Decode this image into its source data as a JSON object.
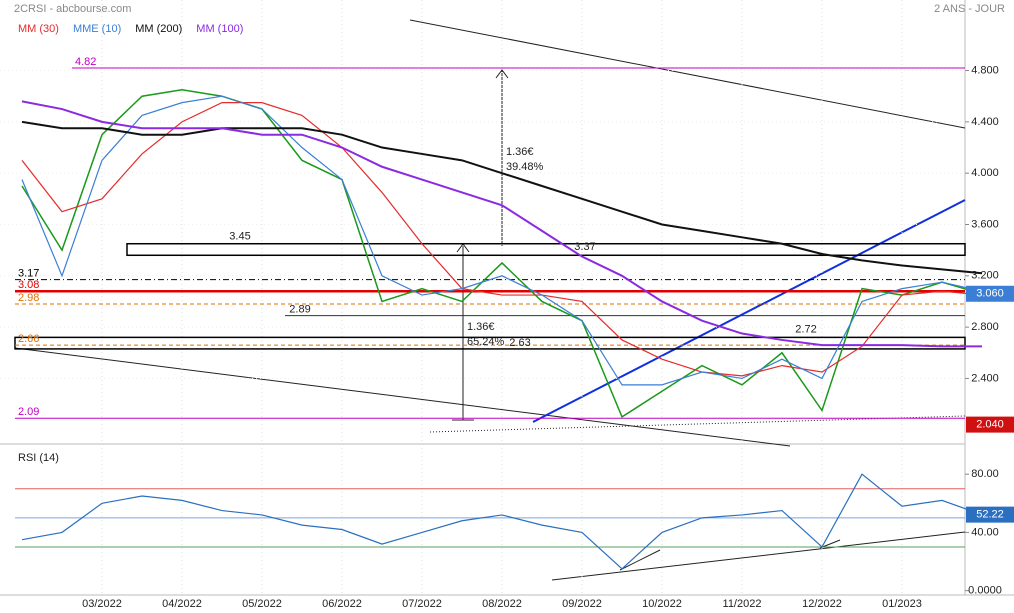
{
  "chart_data": {
    "type": "line",
    "title": "2CRSI - abcbourse.com",
    "subtitle": "2 ANS - JOUR",
    "categories": [
      null,
      null,
      "03/2022",
      null,
      "04/2022",
      null,
      "05/2022",
      null,
      "06/2022",
      null,
      "07/2022",
      null,
      "08/2022",
      null,
      "09/2022",
      null,
      "10/2022",
      null,
      "11/2022",
      null,
      "12/2022",
      null,
      "01/2023",
      null,
      null
    ],
    "price": {
      "color": "#1a9a1a",
      "values": [
        3.9,
        3.4,
        4.3,
        4.6,
        4.65,
        4.6,
        4.5,
        4.1,
        3.95,
        3.0,
        3.1,
        3.0,
        3.3,
        3.0,
        2.85,
        2.1,
        2.3,
        2.5,
        2.35,
        2.6,
        2.15,
        3.1,
        3.05,
        3.15,
        3.06
      ]
    },
    "series": [
      {
        "name": "MM (30)",
        "color": "#e52b2b",
        "values": [
          4.1,
          3.7,
          3.8,
          4.15,
          4.4,
          4.55,
          4.55,
          4.45,
          4.2,
          3.85,
          3.45,
          3.1,
          3.05,
          3.05,
          3.0,
          2.7,
          2.55,
          2.45,
          2.42,
          2.5,
          2.45,
          2.65,
          3.05,
          3.08,
          3.05
        ]
      },
      {
        "name": "MME (10)",
        "color": "#3a7fd5",
        "values": [
          3.95,
          3.2,
          4.1,
          4.45,
          4.55,
          4.6,
          4.5,
          4.2,
          3.95,
          3.2,
          3.05,
          3.1,
          3.2,
          3.05,
          2.85,
          2.35,
          2.35,
          2.45,
          2.4,
          2.55,
          2.4,
          3.0,
          3.1,
          3.15,
          3.08
        ]
      },
      {
        "name": "MM (200)",
        "color": "#111111",
        "values": [
          4.4,
          4.35,
          4.35,
          4.3,
          4.3,
          4.35,
          4.35,
          4.35,
          4.3,
          4.2,
          4.15,
          4.1,
          4.0,
          3.9,
          3.8,
          3.7,
          3.6,
          3.55,
          3.5,
          3.45,
          3.37,
          3.32,
          3.28,
          3.25,
          3.22
        ]
      },
      {
        "name": "MM (100)",
        "color": "#8a2be2",
        "values": [
          4.56,
          4.5,
          4.4,
          4.35,
          4.35,
          4.35,
          4.3,
          4.3,
          4.2,
          4.05,
          3.95,
          3.85,
          3.75,
          3.55,
          3.35,
          3.2,
          3.0,
          2.85,
          2.75,
          2.7,
          2.66,
          2.66,
          2.66,
          2.65,
          2.65
        ]
      }
    ],
    "ylim": [
      1.92,
      5.35
    ],
    "yticks": [
      {
        "value": 4.8,
        "label": "4.800"
      },
      {
        "value": 4.4,
        "label": "4.400"
      },
      {
        "value": 4.0,
        "label": "4.000"
      },
      {
        "value": 3.6,
        "label": "3.600"
      },
      {
        "value": 3.2,
        "label": "3.200"
      },
      {
        "value": 2.8,
        "label": "2.800"
      },
      {
        "value": 2.4,
        "label": "2.400"
      }
    ],
    "levels": [
      {
        "value": 4.82,
        "label": "4.82",
        "color": "#c000c0"
      },
      {
        "value": 3.17,
        "label": "3.17",
        "color": "#000000"
      },
      {
        "value": 3.08,
        "label": "3.08",
        "color": "#e00000"
      },
      {
        "value": 2.98,
        "label": "2.98",
        "color": "#e07000"
      },
      {
        "value": 2.66,
        "label": "2.66",
        "color": "#e07000"
      },
      {
        "value": 2.09,
        "label": "2.09",
        "color": "#c000c0"
      }
    ],
    "zones": [
      {
        "top": 3.45,
        "bottom": 3.36,
        "label": "3.45"
      },
      {
        "top": 2.72,
        "bottom": 2.63,
        "label": "2.72"
      }
    ],
    "annotations": [
      {
        "value": 3.37,
        "label": "3.37"
      },
      {
        "value": 2.89,
        "label": "2.89"
      },
      {
        "value": 2.63,
        "label": "2.63"
      }
    ],
    "moves": [
      {
        "label": "1.36€",
        "pct": "39.48%"
      },
      {
        "label": "1.36€",
        "pct": "65.24%"
      }
    ],
    "price_marker": {
      "value": 3.06,
      "label": "3.060",
      "color": "#3a7fd5"
    },
    "low_marker": {
      "value": 2.04,
      "label": "2.040",
      "color": "#d01010"
    },
    "rsi": {
      "name": "RSI (14)",
      "color": "#2a6fc0",
      "values": [
        35,
        40,
        60,
        65,
        62,
        55,
        52,
        45,
        42,
        32,
        40,
        48,
        52,
        45,
        40,
        15,
        40,
        50,
        52,
        55,
        30,
        80,
        58,
        62,
        52.22
      ],
      "ylim": [
        -3,
        98
      ],
      "yticks": [
        {
          "value": 80,
          "label": "80.00"
        },
        {
          "value": 40,
          "label": "40.00"
        },
        {
          "value": 0,
          "label": "0.0000"
        }
      ],
      "levels": [
        {
          "value": 70,
          "color": "#e06060"
        },
        {
          "value": 50,
          "color": "#7aa6e0"
        },
        {
          "value": 30,
          "color": "#5aa05a"
        }
      ],
      "marker": 52.22
    }
  }
}
